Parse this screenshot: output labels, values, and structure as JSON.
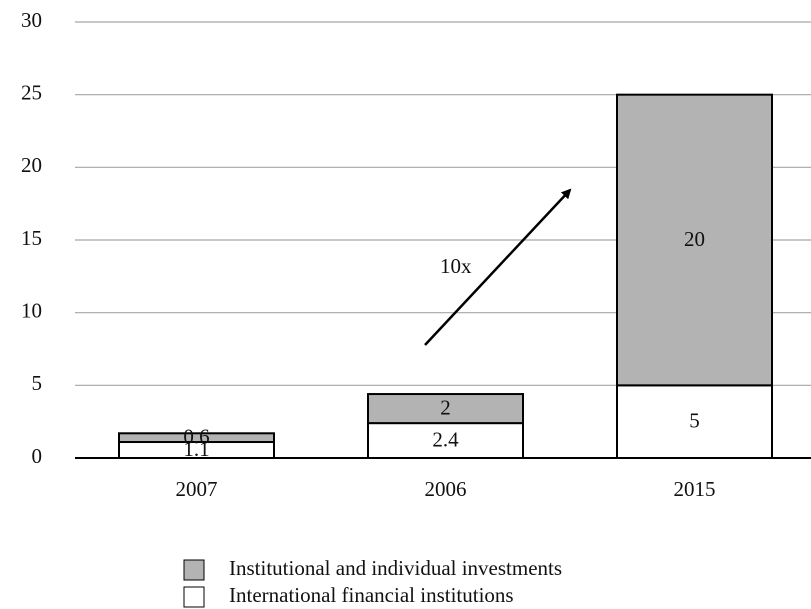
{
  "chart_data": {
    "type": "stacked-bar",
    "categories": [
      "2007",
      "2006",
      "2015"
    ],
    "series": [
      {
        "name": "International financial institutions",
        "color": "#ffffff",
        "values": [
          1.1,
          2.4,
          5
        ]
      },
      {
        "name": "Institutional and individual investments",
        "color": "#b3b3b3",
        "values": [
          0.6,
          2,
          20
        ]
      }
    ],
    "ylim": [
      0,
      30
    ],
    "yticks": [
      0,
      5,
      10,
      15,
      20,
      25,
      30
    ],
    "grid": true,
    "annotations": [
      "10x"
    ]
  }
}
